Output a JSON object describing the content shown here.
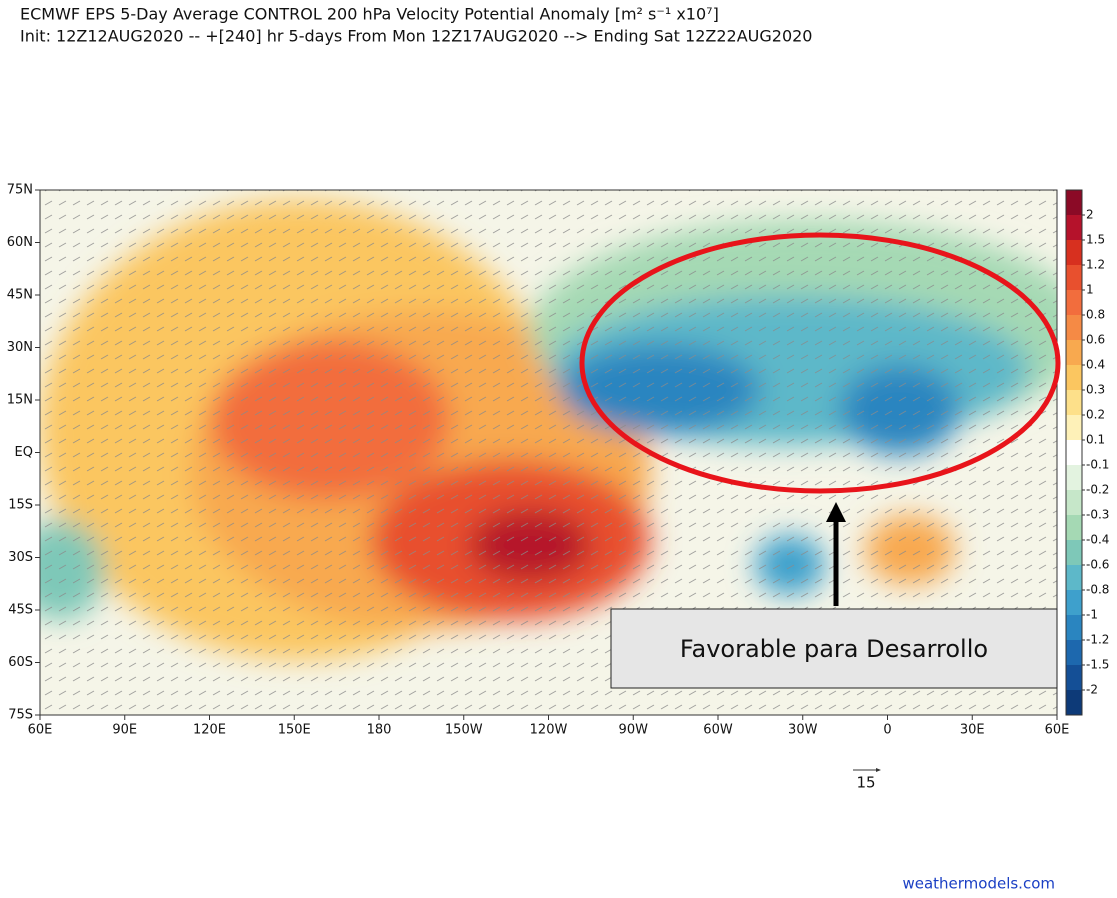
{
  "chart_data": {
    "type": "map",
    "title": "ECMWF EPS 5-Day Average CONTROL 200 hPa Velocity Potential Anomaly [m² s⁻¹ x10⁷]",
    "subtitle": "Init: 12Z12AUG2020 -- +[240] hr   5-days From Mon 12Z17AUG2020 --> Ending Sat 12Z22AUG2020",
    "xlim": [
      60,
      420
    ],
    "ylim": [
      -75,
      75
    ],
    "xticks": [
      {
        "value": 60,
        "label": "60E"
      },
      {
        "value": 90,
        "label": "90E"
      },
      {
        "value": 120,
        "label": "120E"
      },
      {
        "value": 150,
        "label": "150E"
      },
      180,
      {
        "value": 210,
        "label": "150W"
      },
      {
        "value": 240,
        "label": "120W"
      },
      {
        "value": 270,
        "label": "90W"
      },
      {
        "value": 300,
        "label": "60W"
      },
      {
        "value": 330,
        "label": "30W"
      },
      {
        "value": 360,
        "label": "0"
      },
      {
        "value": 390,
        "label": "30E"
      },
      {
        "value": 420,
        "label": "60E"
      }
    ],
    "yticks": [
      {
        "value": 75,
        "label": "75N"
      },
      {
        "value": 60,
        "label": "60N"
      },
      {
        "value": 45,
        "label": "45N"
      },
      {
        "value": 30,
        "label": "30N"
      },
      {
        "value": 15,
        "label": "15N"
      },
      {
        "value": 0,
        "label": "EQ"
      },
      {
        "value": -15,
        "label": "15S"
      },
      {
        "value": -30,
        "label": "30S"
      },
      {
        "value": -45,
        "label": "45S"
      },
      {
        "value": -60,
        "label": "60S"
      },
      {
        "value": -75,
        "label": "75S"
      }
    ],
    "colorbar": {
      "levels": [
        2,
        1.5,
        1.2,
        1,
        0.8,
        0.6,
        0.4,
        0.3,
        0.2,
        0.1,
        -0.1,
        -0.2,
        -0.3,
        -0.4,
        -0.6,
        -0.8,
        -1,
        -1.2,
        -1.5,
        -2
      ],
      "colors": [
        "#8b0a26",
        "#b5122b",
        "#d7301f",
        "#e8502e",
        "#f26d3d",
        "#f58a45",
        "#f8a94f",
        "#fbc660",
        "#fde08a",
        "#fef1b8",
        "#ffffff",
        "#e3f3e0",
        "#c6e7c9",
        "#a5d9b4",
        "#7ec8b8",
        "#5db8c9",
        "#3ea0cc",
        "#2a85c0",
        "#1d68ae",
        "#144f96",
        "#0d3a78"
      ]
    },
    "vector_scale": 15,
    "annotation": "Favorable para Desarrollo",
    "credit": "weathermodels.com"
  }
}
